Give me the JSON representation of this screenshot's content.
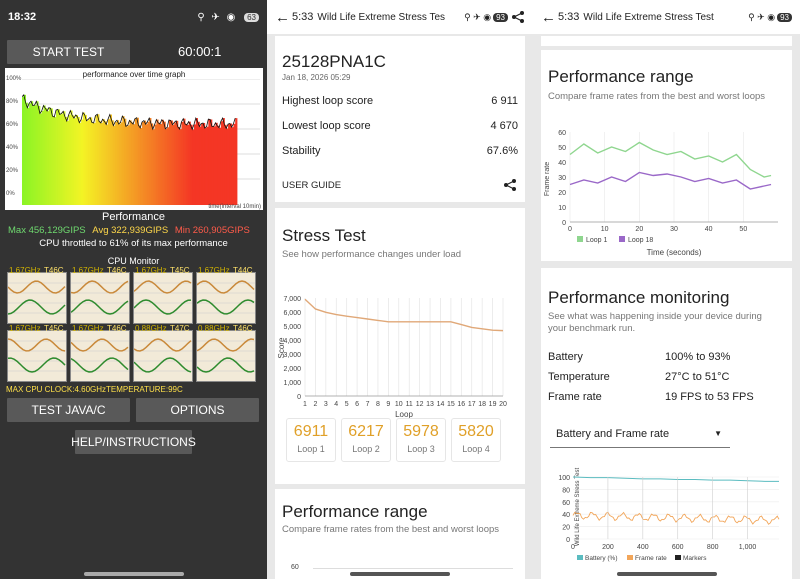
{
  "panel1": {
    "status": {
      "time": "18:32",
      "battery": "63"
    },
    "start_test": "START TEST",
    "timer": "60:00:1",
    "graph": {
      "title": "performance over time graph",
      "y_ticks": [
        "100%",
        "80%",
        "60%",
        "40%",
        "20%",
        "0%"
      ],
      "x_label": "time(interval 10min)"
    },
    "performance": {
      "heading": "Performance",
      "max": "Max 456,129GIPS",
      "avg": "Avg 322,939GIPS",
      "min": "Min 260,905GIPS",
      "throttle": "CPU throttled to 61% of its max performance"
    },
    "cpu_monitor": {
      "title": "CPU Monitor",
      "cells": [
        {
          "freq": "1.67GHz",
          "temp": "T46C"
        },
        {
          "freq": "1.67GHz",
          "temp": "T46C"
        },
        {
          "freq": "1.67GHz",
          "temp": "T45C"
        },
        {
          "freq": "1.67GHz",
          "temp": "T44C"
        },
        {
          "freq": "1.67GHz",
          "temp": "T45C"
        },
        {
          "freq": "1.67GHz",
          "temp": "T46C"
        },
        {
          "freq": "0.88GHz",
          "temp": "T47C"
        },
        {
          "freq": "0.88GHz",
          "temp": "T46C"
        }
      ],
      "max_clock": "MAX CPU CLOCK:4.60GHz",
      "temperature": "TEMPERATURE:99C"
    },
    "test_java": "TEST JAVA/C",
    "options": "OPTIONS",
    "help": "HELP/INSTRUCTIONS"
  },
  "panel2": {
    "status": {
      "time": "5:33",
      "title": "Wild Life Extreme Stress Test",
      "battery": "93"
    },
    "summary": {
      "code": "25128PNA1C",
      "date": "Jan 18, 2026 05:29",
      "rows": [
        {
          "label": "Highest loop score",
          "value": "6 911"
        },
        {
          "label": "Lowest loop score",
          "value": "4 670"
        },
        {
          "label": "Stability",
          "value": "67.6%"
        }
      ],
      "user_guide": "USER GUIDE"
    },
    "stress": {
      "title": "Stress Test",
      "subtitle": "See how performance changes under load",
      "y_label": "Score",
      "x_label": "Loop",
      "y_ticks": [
        "7,000",
        "6,000",
        "5,000",
        "4,000",
        "3,000",
        "2,000",
        "1,000",
        "0"
      ],
      "x_ticks": [
        "1",
        "2",
        "3",
        "4",
        "5",
        "6",
        "7",
        "8",
        "9",
        "10",
        "11",
        "12",
        "13",
        "14",
        "15",
        "16",
        "17",
        "18",
        "19",
        "20"
      ],
      "loops": [
        {
          "value": "6911",
          "label": "Loop 1"
        },
        {
          "value": "6217",
          "label": "Loop 2"
        },
        {
          "value": "5978",
          "label": "Loop 3"
        },
        {
          "value": "5820",
          "label": "Loop 4"
        }
      ]
    },
    "perf_range": {
      "title": "Performance range",
      "subtitle": "Compare frame rates from the best and worst loops",
      "y_tick": "60"
    }
  },
  "panel3": {
    "status": {
      "time": "5:33",
      "title": "Wild Life Extreme Stress Test",
      "battery": "93"
    },
    "perf_range": {
      "title": "Performance range",
      "subtitle": "Compare frame rates from the best and worst loops",
      "y_label": "Frame rate",
      "x_label": "Time (seconds)",
      "y_ticks": [
        "60",
        "50",
        "40",
        "30",
        "20",
        "10",
        "0"
      ],
      "x_ticks": [
        "0",
        "10",
        "20",
        "30",
        "40",
        "50"
      ],
      "legend": [
        "Loop 1",
        "Loop 18"
      ]
    },
    "monitoring": {
      "title": "Performance monitoring",
      "subtitle": "See what was happening inside your device during your benchmark run.",
      "rows": [
        {
          "label": "Battery",
          "value": "100% to 93%"
        },
        {
          "label": "Temperature",
          "value": "27°C to 51°C"
        },
        {
          "label": "Frame rate",
          "value": "19 FPS to 53 FPS"
        }
      ],
      "dropdown": "Battery and Frame rate",
      "chart_label": "Wild Life Extreme Stress Test",
      "y_ticks": [
        "100",
        "80",
        "60",
        "40",
        "20",
        "0"
      ],
      "x_ticks": [
        "0",
        "200",
        "400",
        "600",
        "800",
        "1,000"
      ],
      "legend": [
        "Battery (%)",
        "Frame rate",
        "Markers"
      ]
    }
  },
  "chart_data": [
    {
      "type": "line",
      "title": "Stress Test",
      "xlabel": "Loop",
      "ylabel": "Score",
      "ylim": [
        0,
        7000
      ],
      "x": [
        1,
        2,
        3,
        4,
        5,
        6,
        7,
        8,
        9,
        10,
        11,
        12,
        13,
        14,
        15,
        16,
        17,
        18,
        19,
        20
      ],
      "series": [
        {
          "values": [
            6911,
            6217,
            5978,
            5820,
            5700,
            5600,
            5500,
            5400,
            5300,
            5300,
            5300,
            5300,
            5300,
            5300,
            5300,
            5100,
            4900,
            4800,
            4700,
            4670
          ]
        }
      ]
    },
    {
      "type": "line",
      "title": "Performance range",
      "xlabel": "Time (seconds)",
      "ylabel": "Frame rate",
      "ylim": [
        0,
        60
      ],
      "x": [
        0,
        4,
        8,
        12,
        16,
        20,
        24,
        28,
        32,
        36,
        40,
        44,
        48,
        52,
        56,
        58
      ],
      "series": [
        {
          "name": "Loop 1",
          "values": [
            45,
            52,
            46,
            50,
            47,
            53,
            48,
            45,
            47,
            42,
            44,
            40,
            45,
            35,
            30,
            31
          ]
        },
        {
          "name": "Loop 18",
          "values": [
            25,
            28,
            26,
            30,
            27,
            33,
            31,
            32,
            30,
            27,
            29,
            26,
            28,
            22,
            24,
            25
          ]
        }
      ]
    },
    {
      "type": "line",
      "title": "Performance monitoring",
      "xlabel": "",
      "ylabel": "",
      "ylim": [
        0,
        100
      ],
      "x": [
        0,
        100,
        200,
        300,
        400,
        500,
        600,
        700,
        800,
        900,
        1000,
        1100,
        1180
      ],
      "series": [
        {
          "name": "Battery (%)",
          "values": [
            100,
            99,
            99,
            98,
            97,
            97,
            96,
            96,
            95,
            95,
            94,
            93,
            93
          ]
        },
        {
          "name": "Frame rate",
          "values": [
            40,
            38,
            36,
            37,
            35,
            34,
            33,
            33,
            32,
            31,
            30,
            29,
            28
          ]
        }
      ]
    }
  ]
}
